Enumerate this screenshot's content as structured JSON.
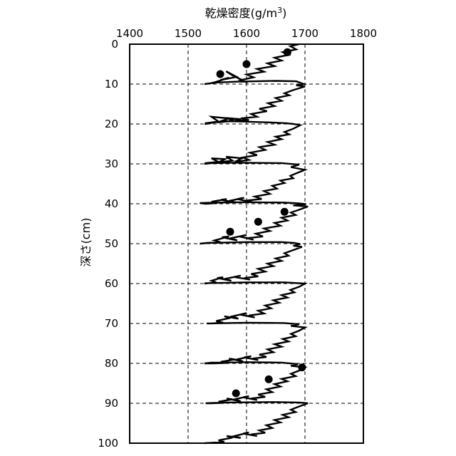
{
  "chart_data": {
    "type": "line",
    "xlabel": "乾燥密度(g/m",
    "xlabel_sup": "3",
    "xlabel_close": ")",
    "ylabel": "深さ(cm)",
    "xlim": [
      1400,
      1800
    ],
    "ylim": [
      0,
      100
    ],
    "y_inverted": true,
    "x_axis_position": "top",
    "x_ticks": [
      1400,
      1500,
      1600,
      1700,
      1800
    ],
    "x_tick_labels": [
      "1400",
      "1500",
      "1600",
      "1700",
      "1800"
    ],
    "y_ticks": [
      0,
      10,
      20,
      30,
      40,
      50,
      60,
      70,
      80,
      90,
      100
    ],
    "y_tick_labels": [
      "0",
      "10",
      "20",
      "30",
      "40",
      "50",
      "60",
      "70",
      "80",
      "90",
      "100"
    ],
    "grid": "dashed",
    "series": [
      {
        "style": "line",
        "x": [
          1690,
          1675,
          1685,
          1662,
          1672,
          1648,
          1660,
          1636,
          1648,
          1618,
          1630,
          1600,
          1612,
          1590,
          1602,
          1578,
          1565,
          1583,
          1555,
          1570,
          1547,
          1538,
          1528,
          1548,
          1585,
          1650,
          1685,
          1698,
          1685,
          1700,
          1680,
          1665,
          1673,
          1650,
          1660,
          1637,
          1648,
          1622,
          1635,
          1608,
          1618,
          1590,
          1604,
          1578,
          1590,
          1565,
          1578,
          1550,
          1570,
          1540,
          1552,
          1530,
          1530,
          1545,
          1560,
          1592,
          1640,
          1668,
          1680,
          1692,
          1680,
          1665,
          1673,
          1650,
          1660,
          1636,
          1648,
          1622,
          1632,
          1606,
          1618,
          1594,
          1604,
          1580,
          1592,
          1565,
          1576,
          1552,
          1563,
          1540,
          1552,
          1530,
          1528,
          1540,
          1580,
          1660,
          1690,
          1676,
          1700,
          1688,
          1675,
          1680,
          1658,
          1665,
          1644,
          1652,
          1630,
          1640,
          1614,
          1626,
          1600,
          1610,
          1584,
          1596,
          1570,
          1583,
          1556,
          1566,
          1540,
          1550,
          1530,
          1520,
          1548,
          1600,
          1665,
          1690,
          1702,
          1680,
          1705,
          1690,
          1676,
          1684,
          1660,
          1670,
          1648,
          1658,
          1630,
          1640,
          1616,
          1628,
          1602,
          1612,
          1588,
          1600,
          1574,
          1584,
          1558,
          1570,
          1545,
          1555,
          1532,
          1520,
          1535,
          1600,
          1660,
          1682,
          1692,
          1680,
          1695,
          1680,
          1665,
          1672,
          1650,
          1660,
          1636,
          1646,
          1620,
          1632,
          1608,
          1620,
          1596,
          1606,
          1580,
          1590,
          1564,
          1574,
          1550,
          1560,
          1540,
          1548,
          1528,
          1530,
          1600,
          1665,
          1700,
          1690,
          1675,
          1682,
          1660,
          1670,
          1646,
          1656,
          1632,
          1642,
          1620,
          1630,
          1604,
          1614,
          1590,
          1600,
          1576,
          1586,
          1562,
          1572,
          1548,
          1560,
          1540,
          1532,
          1600,
          1665,
          1690,
          1676,
          1700,
          1690,
          1676,
          1684,
          1662,
          1672,
          1648,
          1660,
          1636,
          1646,
          1622,
          1634,
          1610,
          1620,
          1596,
          1608,
          1584,
          1594,
          1570,
          1580,
          1556,
          1566,
          1542,
          1528,
          1540,
          1600,
          1660,
          1688,
          1676,
          1700,
          1690,
          1676,
          1684,
          1660,
          1670,
          1648,
          1658,
          1634,
          1644,
          1620,
          1632,
          1608,
          1618,
          1594,
          1604,
          1580,
          1590,
          1566,
          1576,
          1552,
          1562,
          1538,
          1530,
          1560,
          1650,
          1690,
          1705,
          1690,
          1676,
          1684,
          1662,
          1672,
          1648,
          1658,
          1634,
          1644,
          1622,
          1632,
          1608,
          1618,
          1594,
          1604,
          1580,
          1590,
          1566,
          1576,
          1552,
          1562,
          1540,
          1528
        ],
        "y": [
          0,
          0.5,
          1.3,
          2.0,
          2.7,
          3.4,
          4.1,
          4.8,
          5.5,
          6.2,
          6.9,
          7.6,
          8.3,
          9.0,
          9.6,
          8.0,
          6.8,
          8.2,
          9.0,
          8.4,
          9.5,
          9.8,
          10.0,
          9.6,
          9.4,
          9.2,
          9.3,
          10.0,
          10.3,
          10.6,
          11.5,
          12.3,
          12.8,
          13.5,
          14.2,
          14.8,
          15.5,
          16.2,
          16.8,
          17.5,
          18.2,
          18.6,
          19.0,
          19.3,
          18.8,
          18.5,
          19.2,
          19.6,
          18.6,
          18.2,
          19.4,
          19.8,
          20.0,
          19.6,
          19.3,
          19.4,
          19.6,
          19.8,
          20.0,
          20.3,
          21.2,
          22.0,
          22.6,
          23.2,
          23.8,
          24.5,
          25.2,
          25.8,
          26.5,
          27.2,
          27.8,
          28.4,
          29.0,
          29.5,
          28.6,
          28.2,
          29.2,
          29.6,
          28.8,
          28.6,
          29.5,
          29.8,
          30.0,
          29.8,
          29.7,
          29.8,
          30.2,
          30.8,
          31.5,
          32.2,
          33.0,
          33.6,
          34.2,
          34.8,
          35.5,
          36.2,
          36.8,
          37.5,
          38.2,
          38.8,
          39.2,
          39.6,
          38.8,
          38.5,
          39.3,
          39.7,
          39.0,
          38.8,
          39.5,
          39.8,
          40.0,
          39.8,
          39.7,
          39.6,
          39.7,
          39.9,
          40.1,
          40.4,
          40.7,
          41.5,
          42.2,
          42.8,
          43.5,
          44.2,
          44.8,
          45.5,
          46.2,
          46.8,
          47.5,
          48.2,
          48.6,
          49.0,
          48.2,
          47.8,
          48.6,
          49.2,
          48.4,
          48.2,
          49.2,
          49.6,
          49.8,
          50.0,
          49.8,
          49.6,
          49.6,
          49.8,
          50.1,
          50.5,
          50.8,
          51.6,
          52.4,
          53.0,
          53.7,
          54.3,
          55.0,
          55.6,
          56.3,
          57.0,
          57.6,
          58.2,
          58.6,
          59.0,
          58.4,
          58.0,
          58.8,
          59.3,
          58.6,
          58.4,
          59.3,
          59.7,
          60.0,
          59.9,
          59.7,
          59.7,
          60.0,
          60.8,
          61.6,
          62.2,
          62.9,
          63.5,
          64.2,
          64.8,
          65.5,
          66.2,
          66.8,
          67.5,
          68.0,
          68.5,
          67.8,
          67.4,
          68.2,
          68.8,
          68.2,
          68.6,
          69.4,
          69.8,
          70.0,
          70.0,
          69.8,
          69.9,
          70.2,
          70.6,
          71.0,
          71.8,
          72.6,
          73.2,
          73.9,
          74.5,
          75.2,
          75.8,
          76.5,
          77.2,
          77.8,
          78.4,
          78.8,
          79.2,
          78.5,
          78.2,
          79.0,
          79.5,
          78.8,
          79.0,
          79.6,
          79.9,
          80.0,
          80.0,
          79.8,
          79.7,
          79.8,
          80.2,
          80.6,
          81.0,
          81.8,
          82.6,
          83.2,
          83.9,
          84.5,
          85.2,
          85.8,
          86.5,
          87.2,
          87.8,
          88.4,
          88.8,
          89.2,
          88.5,
          88.2,
          89.0,
          89.5,
          88.8,
          89.0,
          89.6,
          89.9,
          90.0,
          90.0,
          89.8,
          89.7,
          89.8,
          90.0,
          90.8,
          91.6,
          92.2,
          92.9,
          93.5,
          94.2,
          94.8,
          95.5,
          96.2,
          96.8,
          97.4,
          97.8,
          98.2,
          97.6,
          97.3,
          98.2,
          98.7,
          98.2,
          98.6,
          99.3,
          99.7,
          99.9,
          100.0
        ]
      },
      {
        "style": "markers",
        "x": [
          1670,
          1600,
          1555,
          1665,
          1620,
          1572,
          1695,
          1638,
          1582
        ],
        "y": [
          2,
          5,
          7.5,
          42,
          44.5,
          47,
          81,
          84,
          87.5
        ]
      }
    ]
  }
}
